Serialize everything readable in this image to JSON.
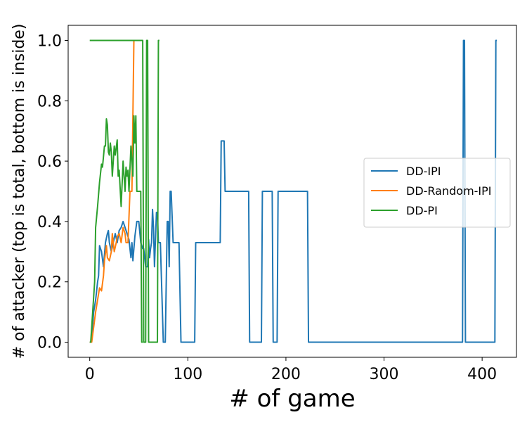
{
  "chart_data": {
    "type": "line",
    "xlabel": "# of game",
    "ylabel": "# of attacker (top is total, bottom is inside)",
    "xlim": [
      -22,
      435
    ],
    "ylim": [
      -0.05,
      1.05
    ],
    "xticks": [
      0,
      100,
      200,
      300,
      400
    ],
    "yticks": [
      0.0,
      0.2,
      0.4,
      0.6,
      0.8,
      1.0
    ],
    "xtick_labels": [
      "0",
      "100",
      "200",
      "300",
      "400"
    ],
    "ytick_labels": [
      "0.0",
      "0.2",
      "0.4",
      "0.6",
      "0.8",
      "1.0"
    ],
    "grid": false,
    "legend_position": "right",
    "series": [
      {
        "name": "DD-IPI",
        "color": "#1f77b4",
        "points": [
          [
            0,
            0
          ],
          [
            1,
            0
          ],
          [
            2,
            0.02
          ],
          [
            4,
            0.1
          ],
          [
            6,
            0.14
          ],
          [
            8,
            0.2
          ],
          [
            9,
            0.22
          ],
          [
            10,
            0.32
          ],
          [
            12,
            0.3
          ],
          [
            14,
            0.25
          ],
          [
            16,
            0.33
          ],
          [
            18,
            0.36
          ],
          [
            19,
            0.37
          ],
          [
            20,
            0.33
          ],
          [
            22,
            0.3
          ],
          [
            24,
            0.33
          ],
          [
            26,
            0.36
          ],
          [
            28,
            0.33
          ],
          [
            30,
            0.37
          ],
          [
            32,
            0.38
          ],
          [
            34,
            0.4
          ],
          [
            36,
            0.38
          ],
          [
            38,
            0.36
          ],
          [
            40,
            0.34
          ],
          [
            42,
            0.28
          ],
          [
            43,
            0.33
          ],
          [
            44,
            0.27
          ],
          [
            46,
            0.35
          ],
          [
            48,
            0.4
          ],
          [
            50,
            0.4
          ],
          [
            52,
            0.33
          ],
          [
            54,
            0.31
          ],
          [
            55,
            0.31
          ],
          [
            57,
            0.25
          ],
          [
            59,
            0.25
          ],
          [
            60,
            0.34
          ],
          [
            61,
            0.28
          ],
          [
            62,
            0.31
          ],
          [
            63,
            0.33
          ],
          [
            64,
            0.44
          ],
          [
            65,
            0.38
          ],
          [
            66,
            0.25
          ],
          [
            68,
            0.43
          ],
          [
            69,
            0.43
          ],
          [
            70,
            0.33
          ],
          [
            72,
            0.33
          ],
          [
            75,
            0.0
          ],
          [
            77,
            0.0
          ],
          [
            79,
            0.4
          ],
          [
            80,
            0.4
          ],
          [
            81,
            0.25
          ],
          [
            82,
            0.5
          ],
          [
            83,
            0.5
          ],
          [
            85,
            0.33
          ],
          [
            91,
            0.33
          ],
          [
            93,
            0.0
          ],
          [
            107,
            0.0
          ],
          [
            108,
            0.33
          ],
          [
            133,
            0.33
          ],
          [
            134,
            0.667
          ],
          [
            137,
            0.667
          ],
          [
            138,
            0.5
          ],
          [
            162,
            0.5
          ],
          [
            163,
            0.0
          ],
          [
            175,
            0.0
          ],
          [
            176,
            0.5
          ],
          [
            186,
            0.5
          ],
          [
            187,
            0.0
          ],
          [
            191,
            0.0
          ],
          [
            192,
            0.5
          ],
          [
            222,
            0.5
          ],
          [
            223,
            0.0
          ],
          [
            380,
            0.0
          ],
          [
            381,
            1.0
          ],
          [
            382,
            1.0
          ],
          [
            383,
            0.0
          ],
          [
            413,
            0.0
          ],
          [
            414,
            1.0
          ],
          [
            415,
            1.0
          ]
        ]
      },
      {
        "name": "DD-Random-IPI",
        "color": "#ff7f0e",
        "points": [
          [
            0,
            0
          ],
          [
            2,
            0
          ],
          [
            4,
            0.05
          ],
          [
            6,
            0.1
          ],
          [
            8,
            0.14
          ],
          [
            10,
            0.18
          ],
          [
            12,
            0.17
          ],
          [
            14,
            0.22
          ],
          [
            15,
            0.27
          ],
          [
            17,
            0.32
          ],
          [
            18,
            0.28
          ],
          [
            20,
            0.27
          ],
          [
            22,
            0.3
          ],
          [
            23,
            0.36
          ],
          [
            25,
            0.3
          ],
          [
            27,
            0.33
          ],
          [
            28,
            0.35
          ],
          [
            30,
            0.36
          ],
          [
            32,
            0.33
          ],
          [
            34,
            0.38
          ],
          [
            36,
            0.36
          ],
          [
            37,
            0.33
          ],
          [
            39,
            0.33
          ],
          [
            41,
            0.5
          ],
          [
            43,
            0.5
          ],
          [
            45,
            1.0
          ],
          [
            48,
            1.0
          ]
        ]
      },
      {
        "name": "DD-PI",
        "color": "#2ca02c",
        "points": [
          [
            0,
            1.0
          ],
          [
            53,
            1.0
          ],
          [
            54,
            1.0
          ],
          [
            55,
            0.0
          ],
          [
            57,
            0.0
          ],
          [
            58,
            1.0
          ],
          [
            59,
            1.0
          ],
          [
            60,
            0.0
          ],
          [
            69,
            0.0
          ],
          [
            70,
            1.0
          ],
          [
            71,
            1.0
          ]
        ],
        "points_lower": [
          [
            0,
            0
          ],
          [
            1,
            0
          ],
          [
            3,
            0.1
          ],
          [
            5,
            0.2
          ],
          [
            6,
            0.38
          ],
          [
            8,
            0.45
          ],
          [
            10,
            0.53
          ],
          [
            12,
            0.59
          ],
          [
            13,
            0.58
          ],
          [
            15,
            0.65
          ],
          [
            16,
            0.65
          ],
          [
            17,
            0.74
          ],
          [
            18,
            0.72
          ],
          [
            19,
            0.63
          ],
          [
            20,
            0.62
          ],
          [
            21,
            0.66
          ],
          [
            22,
            0.63
          ],
          [
            23,
            0.55
          ],
          [
            25,
            0.65
          ],
          [
            26,
            0.62
          ],
          [
            28,
            0.67
          ],
          [
            29,
            0.55
          ],
          [
            30,
            0.57
          ],
          [
            32,
            0.45
          ],
          [
            34,
            0.6
          ],
          [
            35,
            0.55
          ],
          [
            36,
            0.5
          ],
          [
            37,
            0.58
          ],
          [
            38,
            0.55
          ],
          [
            39,
            0.57
          ],
          [
            40,
            0.5
          ],
          [
            42,
            0.65
          ],
          [
            43,
            0.6
          ],
          [
            44,
            0.55
          ],
          [
            45,
            0.75
          ],
          [
            46,
            0.66
          ],
          [
            47,
            0.75
          ],
          [
            48,
            0.5
          ],
          [
            50,
            0.5
          ],
          [
            52,
            0.5
          ],
          [
            53,
            0.0
          ],
          [
            54,
            0.0
          ]
        ]
      }
    ]
  }
}
